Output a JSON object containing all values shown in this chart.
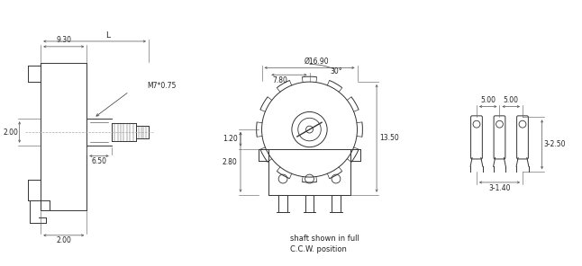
{
  "bg_color": "#ffffff",
  "line_color": "#333333",
  "dim_color": "#555555",
  "text_color": "#222222",
  "fig_width": 6.46,
  "fig_height": 2.96,
  "dpi": 100,
  "annotations": {
    "label_930": "9.30",
    "label_L": "L",
    "label_200_top": "2.00",
    "label_650": "6.50",
    "label_m7": "M7*0.75",
    "label_200_bot": "2.00",
    "label_dia1690": "Ø16.90",
    "label_780": "7.80",
    "label_30": "30°",
    "label_120": "1.20",
    "label_280": "2.80",
    "label_1350": "13.50",
    "label_500_left": "5.00",
    "label_500_right": "5.00",
    "label_3140": "3-1.40",
    "label_3250": "3-2.50",
    "caption1": "shaft shown in full",
    "caption2": "C.C.W. position"
  }
}
